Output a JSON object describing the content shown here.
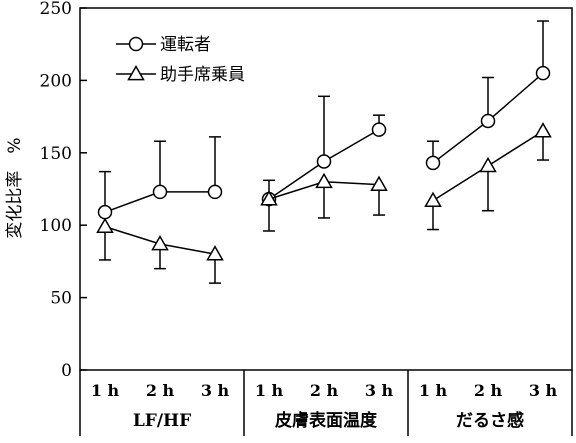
{
  "chart_data": {
    "type": "line",
    "ylabel": "変化比率　%",
    "ylim": [
      0,
      250
    ],
    "yticks": [
      0,
      50,
      100,
      150,
      200,
      250
    ],
    "grid": false,
    "legend_position": "top-left",
    "groups": [
      {
        "label": "LF/HF",
        "x": [
          "1 h",
          "2 h",
          "3 h"
        ]
      },
      {
        "label": "皮膚表面温度",
        "x": [
          "1 h",
          "2 h",
          "3 h"
        ]
      },
      {
        "label": "だるさ感",
        "x": [
          "1 h",
          "2 h",
          "3 h"
        ]
      }
    ],
    "series": [
      {
        "name": "運転者",
        "marker": "circle",
        "error_direction": "up",
        "values": [
          [
            109,
            123,
            123
          ],
          [
            118,
            144,
            166
          ],
          [
            143,
            172,
            205
          ]
        ],
        "errors": [
          [
            28,
            35,
            38
          ],
          [
            13,
            45,
            10
          ],
          [
            15,
            30,
            36
          ]
        ]
      },
      {
        "name": "助手席乗員",
        "marker": "triangle",
        "error_direction": "down",
        "values": [
          [
            99,
            87,
            80
          ],
          [
            118,
            130,
            128
          ],
          [
            117,
            141,
            165
          ]
        ],
        "errors": [
          [
            23,
            17,
            20
          ],
          [
            22,
            25,
            21
          ],
          [
            20,
            31,
            20
          ]
        ]
      }
    ]
  }
}
